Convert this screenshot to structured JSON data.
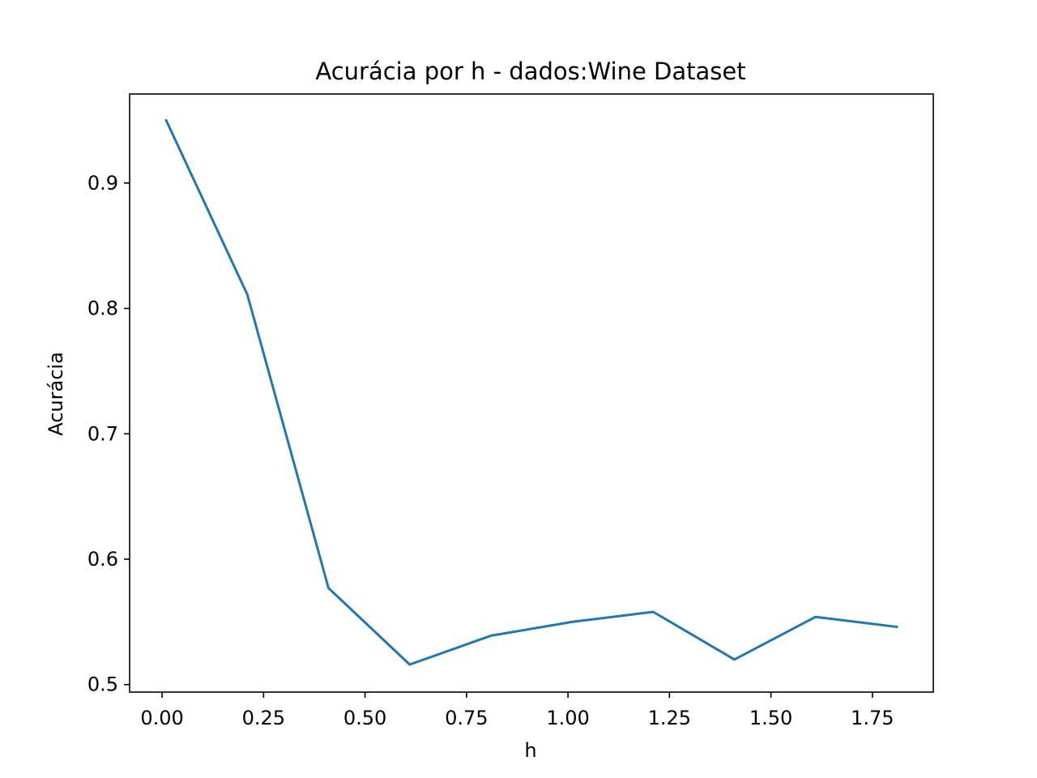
{
  "chart_data": {
    "type": "line",
    "title": "Acurácia por h - dados:Wine Dataset",
    "xlabel": "h",
    "ylabel": "Acurácia",
    "xlim": [
      -0.08,
      1.9
    ],
    "ylim": [
      0.494,
      0.971
    ],
    "x_ticks": [
      0.0,
      0.25,
      0.5,
      0.75,
      1.0,
      1.25,
      1.5,
      1.75
    ],
    "x_tick_labels": [
      "0.00",
      "0.25",
      "0.50",
      "0.75",
      "1.00",
      "1.25",
      "1.50",
      "1.75"
    ],
    "y_ticks": [
      0.5,
      0.6,
      0.7,
      0.8,
      0.9
    ],
    "y_tick_labels": [
      "0.5",
      "0.6",
      "0.7",
      "0.8",
      "0.9"
    ],
    "grid": false,
    "series": [
      {
        "color": "#1f77b4",
        "x": [
          0.01,
          0.21,
          0.41,
          0.61,
          0.81,
          1.01,
          1.21,
          1.41,
          1.61,
          1.81
        ],
        "y": [
          0.95,
          0.811,
          0.577,
          0.516,
          0.539,
          0.55,
          0.558,
          0.52,
          0.554,
          0.546
        ]
      }
    ]
  }
}
